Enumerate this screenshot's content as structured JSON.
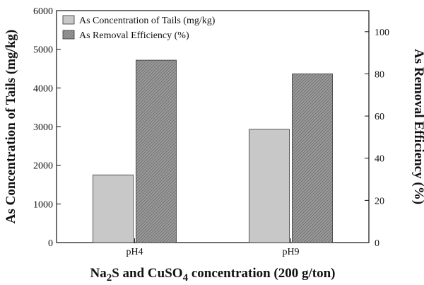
{
  "chart_data": {
    "type": "bar",
    "categories": [
      "pH4",
      "pH9"
    ],
    "series": [
      {
        "name": "As Concentration of Tails (mg/kg)",
        "axis": "left",
        "values": [
          1750,
          2930
        ],
        "color": "#c8c8c8"
      },
      {
        "name": "As Removal Efficiency (%)",
        "axis": "right",
        "values": [
          86.5,
          80
        ],
        "color": "#8a8a8a"
      }
    ],
    "ylabel_left": "As Concentration of Tails (mg/kg)",
    "ylabel_right": "As Removal Efficiency (%)",
    "xlabel_parts": [
      "Na",
      "2",
      "S and CuSO",
      "4",
      " concentration (200 g/ton)"
    ],
    "ylim_left": [
      0,
      6000
    ],
    "ylim_right": [
      0,
      110
    ],
    "yticks_left": [
      0,
      1000,
      2000,
      3000,
      4000,
      5000,
      6000
    ],
    "yticks_right": [
      0,
      20,
      40,
      60,
      80,
      100
    ],
    "legend_position": "top-left",
    "grid": false
  }
}
